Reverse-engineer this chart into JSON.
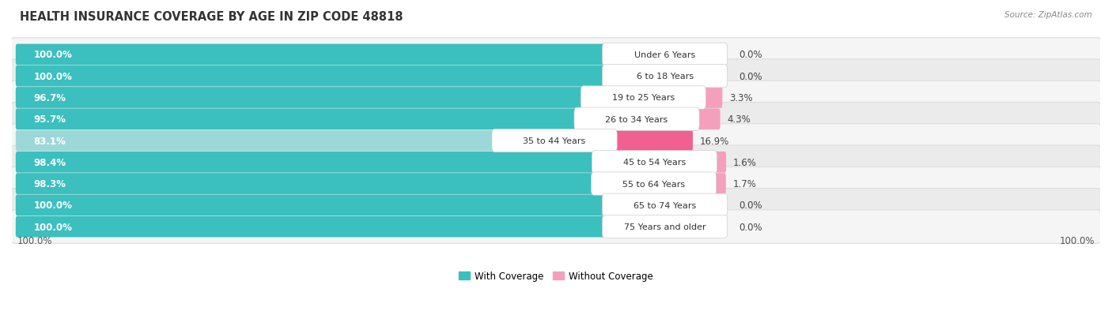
{
  "title": "HEALTH INSURANCE COVERAGE BY AGE IN ZIP CODE 48818",
  "source": "Source: ZipAtlas.com",
  "categories": [
    "Under 6 Years",
    "6 to 18 Years",
    "19 to 25 Years",
    "26 to 34 Years",
    "35 to 44 Years",
    "45 to 54 Years",
    "55 to 64 Years",
    "65 to 74 Years",
    "75 Years and older"
  ],
  "with_coverage": [
    100.0,
    100.0,
    96.7,
    95.7,
    83.1,
    98.4,
    98.3,
    100.0,
    100.0
  ],
  "without_coverage": [
    0.0,
    0.0,
    3.3,
    4.3,
    16.9,
    1.6,
    1.7,
    0.0,
    0.0
  ],
  "color_with": "#3bbfbf",
  "color_without_dark": "#f06090",
  "color_without_light": "#f4a0bc",
  "color_with_light": "#9dd8d8",
  "legend_with": "With Coverage",
  "legend_without": "Without Coverage",
  "title_fontsize": 10.5,
  "label_fontsize": 8.5,
  "tick_fontsize": 8.5,
  "source_fontsize": 7.5,
  "bar_scale": 0.6,
  "pink_scale": 0.4,
  "row_colors": [
    "#f5f5f5",
    "#ebebeb",
    "#f5f5f5",
    "#ebebeb",
    "#f5f5f5",
    "#ebebeb",
    "#f5f5f5",
    "#ebebeb",
    "#f5f5f5"
  ]
}
